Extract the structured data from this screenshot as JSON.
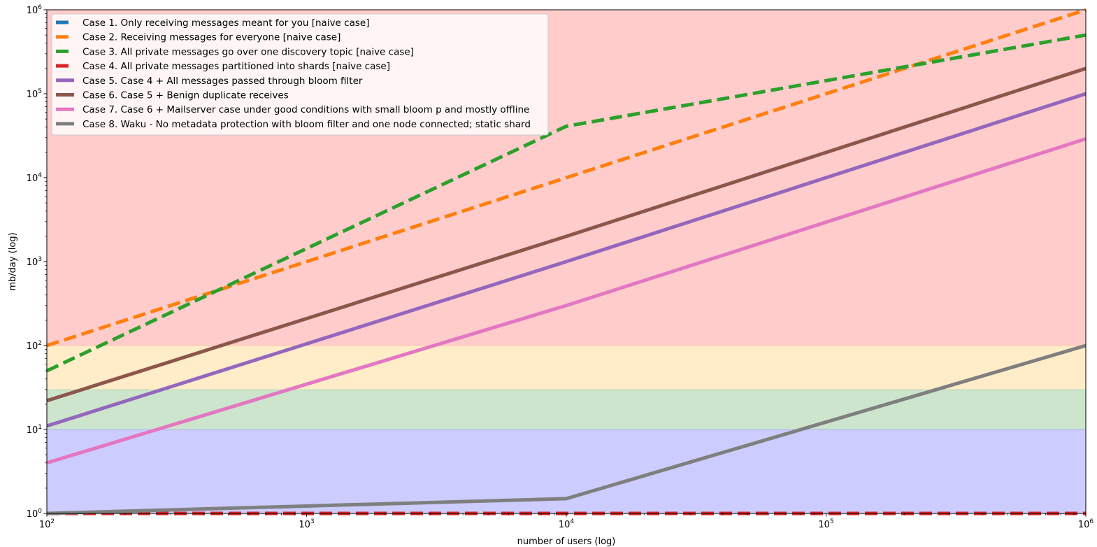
{
  "chart_data": {
    "type": "line",
    "title": "",
    "xlabel": "number of users (log)",
    "ylabel": "mb/day (log)",
    "xscale": "log",
    "yscale": "log",
    "xlim": [
      100,
      1000000
    ],
    "ylim": [
      1,
      1000000
    ],
    "grid": false,
    "legend_position": "top-left",
    "x_ticks": [
      {
        "value": 100,
        "base": "10",
        "exp": "2"
      },
      {
        "value": 1000,
        "base": "10",
        "exp": "3"
      },
      {
        "value": 10000,
        "base": "10",
        "exp": "4"
      },
      {
        "value": 100000,
        "base": "10",
        "exp": "5"
      },
      {
        "value": 1000000,
        "base": "10",
        "exp": "6"
      }
    ],
    "y_ticks": [
      {
        "value": 1,
        "base": "10",
        "exp": "0"
      },
      {
        "value": 10,
        "base": "10",
        "exp": "1"
      },
      {
        "value": 100,
        "base": "10",
        "exp": "2"
      },
      {
        "value": 1000,
        "base": "10",
        "exp": "3"
      },
      {
        "value": 10000,
        "base": "10",
        "exp": "4"
      },
      {
        "value": 100000,
        "base": "10",
        "exp": "5"
      },
      {
        "value": 1000000,
        "base": "10",
        "exp": "6"
      }
    ],
    "bands": [
      {
        "y0": 1,
        "y1": 10,
        "color": "#ccccff",
        "edge": "#9999ff"
      },
      {
        "y0": 10,
        "y1": 30,
        "color": "#cce5cc",
        "edge": "#a6cfa6"
      },
      {
        "y0": 30,
        "y1": 100,
        "color": "#ffecc9",
        "edge": "#f0c890"
      },
      {
        "y0": 100,
        "y1": 1000000,
        "color": "#ffcccc",
        "edge": "#f5a5a5"
      }
    ],
    "x": [
      100,
      10000,
      1000000
    ],
    "series": [
      {
        "name": "Case 1. Only receiving messages meant for you [naive case]",
        "color": "#1f77b4",
        "dashed": true,
        "values": [
          1,
          1,
          1
        ]
      },
      {
        "name": "Case 2. Receiving messages for everyone [naive case]",
        "color": "#ff7f0e",
        "dashed": true,
        "values": [
          100,
          10000,
          1000000
        ]
      },
      {
        "name": "Case 3. All private messages go over one discovery topic [naive case]",
        "color": "#2ca02c",
        "dashed": true,
        "values": [
          50,
          41000,
          500000
        ]
      },
      {
        "name": "Case 4. All private messages partitioned into shards [naive case]",
        "color": "#d62728",
        "dashed": true,
        "values": [
          1,
          1,
          1
        ]
      },
      {
        "name": "Case 5. Case 4 + All messages passed through bloom filter",
        "color": "#9467bd",
        "dashed": false,
        "values": [
          11,
          1000,
          100000
        ]
      },
      {
        "name": "Case 6. Case 5 + Benign duplicate receives",
        "color": "#8c564b",
        "dashed": false,
        "values": [
          22,
          2000,
          200000
        ]
      },
      {
        "name": "Case 7. Case 6 + Mailserver case under good conditions with small bloom p and mostly offline",
        "color": "#e377c2",
        "dashed": false,
        "values": [
          4,
          300,
          29000
        ]
      },
      {
        "name": "Case 8. Waku - No metadata protection with bloom filter and one node connected; static shard",
        "color": "#7f7f7f",
        "dashed": false,
        "values": [
          1,
          1.5,
          100
        ]
      }
    ]
  }
}
